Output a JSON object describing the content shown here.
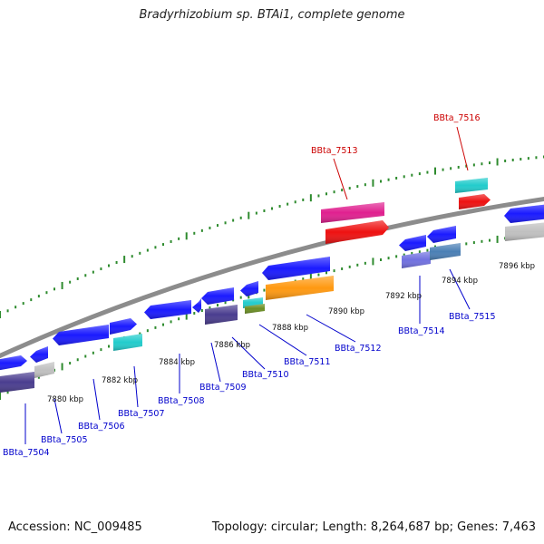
{
  "title": "Bradyrhizobium sp. BTAi1, complete genome",
  "footer": {
    "accession": "Accession: NC_009485",
    "topology": "Topology: circular; Length: 8,264,687 bp; Genes: 7,463"
  },
  "colors": {
    "backbone": "#8c8c8c",
    "tick": "#2e8b2e",
    "label_default": "#0000cc",
    "label_highlight": "#cc0000",
    "blue_gene": "#1a1aff",
    "navy_gene": "#4a3d8f",
    "cyan_gene": "#22cccc",
    "grey_gene": "#c0c0c0",
    "pink_gene": "#e0208f",
    "red_gene": "#ee1111",
    "orange_gene": "#ff9911",
    "olive_gene": "#6b8e23",
    "periwinkle_gene": "#7070e0",
    "steel_gene": "#4a7fb5"
  },
  "scale_labels": [
    "7880 kbp",
    "7882 kbp",
    "7884 kbp",
    "7886 kbp",
    "7888 kbp",
    "7890 kbp",
    "7892 kbp",
    "7894 kbp",
    "7896 kbp"
  ],
  "gene_labels": [
    {
      "id": "BBta_7504",
      "highlight": false
    },
    {
      "id": "BBta_7505",
      "highlight": false
    },
    {
      "id": "BBta_7506",
      "highlight": false
    },
    {
      "id": "BBta_7507",
      "highlight": false
    },
    {
      "id": "BBta_7508",
      "highlight": false
    },
    {
      "id": "BBta_7509",
      "highlight": false
    },
    {
      "id": "BBta_7510",
      "highlight": false
    },
    {
      "id": "BBta_7511",
      "highlight": false
    },
    {
      "id": "BBta_7512",
      "highlight": false
    },
    {
      "id": "BBta_7513",
      "highlight": true
    },
    {
      "id": "BBta_7514",
      "highlight": false
    },
    {
      "id": "BBta_7515",
      "highlight": false
    },
    {
      "id": "BBta_7516",
      "highlight": true
    }
  ]
}
